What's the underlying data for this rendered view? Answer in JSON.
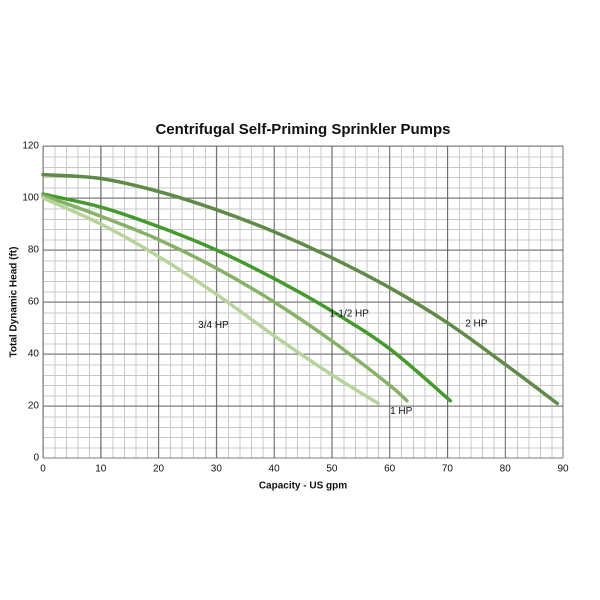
{
  "chart_data": {
    "type": "line",
    "title": "Centrifugal Self-Priming Sprinkler Pumps",
    "x_label": "Capacity - US gpm",
    "y_label": "Total Dynamic Head (ft)",
    "xlim": [
      0,
      90
    ],
    "ylim": [
      0,
      120
    ],
    "xticks": [
      0,
      10,
      20,
      30,
      40,
      50,
      60,
      70,
      80,
      90
    ],
    "yticks": [
      0,
      20,
      40,
      60,
      80,
      100,
      120
    ],
    "grid": true,
    "series": [
      {
        "name": "2 HP",
        "color": "#5f8a47",
        "label_at": [
          75,
          51.5
        ],
        "x": [
          0,
          10,
          20,
          30,
          40,
          50,
          60,
          70,
          80,
          89
        ],
        "values": [
          109,
          107.5,
          102.5,
          95.5,
          87,
          77,
          65.5,
          52,
          36,
          21
        ]
      },
      {
        "name": "1-1/2 HP",
        "color": "#45992d",
        "label_at": [
          53,
          55.5
        ],
        "x": [
          0,
          10,
          20,
          30,
          40,
          50,
          60,
          70.5
        ],
        "values": [
          101.5,
          96.5,
          89,
          80,
          69,
          56.5,
          42,
          22
        ]
      },
      {
        "name": "1 HP",
        "color": "#86b166",
        "label_at": [
          62,
          18
        ],
        "x": [
          0,
          10,
          20,
          30,
          40,
          50,
          60,
          63
        ],
        "values": [
          101,
          93,
          84,
          73,
          60,
          45,
          28,
          22
        ]
      },
      {
        "name": "3/4 HP",
        "color": "#b7d49c",
        "label_at": [
          29.5,
          51
        ],
        "x": [
          0,
          10,
          20,
          30,
          40,
          50,
          58
        ],
        "values": [
          100,
          90,
          77.5,
          63,
          47,
          32,
          21
        ]
      }
    ]
  }
}
